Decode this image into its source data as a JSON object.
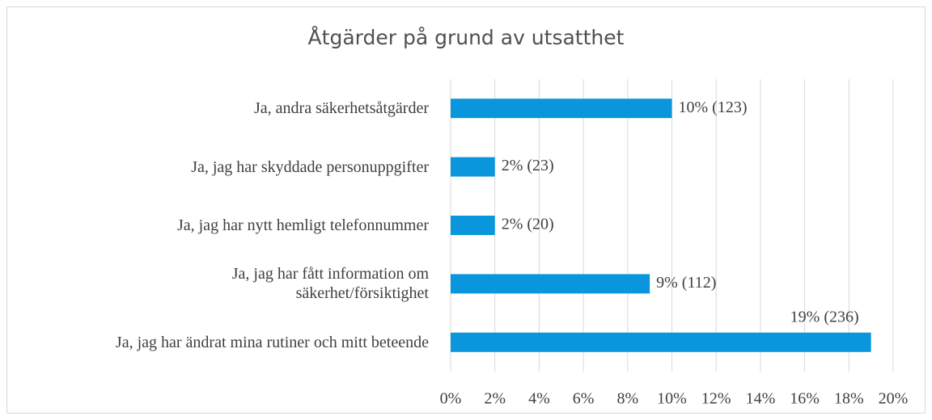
{
  "chart_data": {
    "type": "bar",
    "orientation": "horizontal",
    "title": "Åtgärder på grund av utsatthet",
    "categories": [
      "Ja, andra säkerhetsåtgärder",
      "Ja, jag har skyddade personuppgifter",
      "Ja, jag har nytt hemligt telefonnummer",
      "Ja, jag har fått information om\nsäkerhet/försiktighet",
      "Ja, jag har ändrat mina rutiner och mitt beteende"
    ],
    "values": [
      10,
      2,
      2,
      9,
      19
    ],
    "value_labels": [
      "10% (123)",
      "2% (23)",
      "2% (20)",
      "9% (112)",
      "19% (236)"
    ],
    "color": "#0a96dc",
    "xlim": [
      0,
      20
    ],
    "xticks": [
      {
        "value": 0,
        "label": "0%"
      },
      {
        "value": 2,
        "label": "2%"
      },
      {
        "value": 4,
        "label": "4%"
      },
      {
        "value": 6,
        "label": "6%"
      },
      {
        "value": 8,
        "label": "8%"
      },
      {
        "value": 10,
        "label": "10%"
      },
      {
        "value": 12,
        "label": "12%"
      },
      {
        "value": 14,
        "label": "14%"
      },
      {
        "value": 16,
        "label": "16%"
      },
      {
        "value": 18,
        "label": "18%"
      },
      {
        "value": 20,
        "label": "20%"
      }
    ],
    "grid": true
  }
}
